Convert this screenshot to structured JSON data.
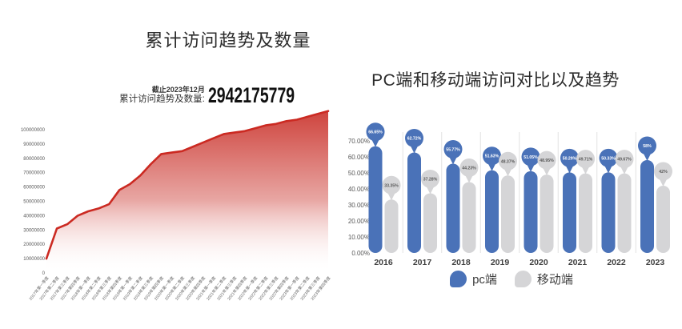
{
  "left_chart": {
    "title": "累计访问趋势及数量",
    "stat": {
      "caption": "截止2023年12月",
      "label": "累计访问趋势及数量:",
      "value": "2942175779"
    }
  },
  "right_chart": {
    "title": "PC端和移动端访问对比以及趋势",
    "legend": {
      "pc": "pc端",
      "mobile": "移动端"
    }
  },
  "chart_data": [
    {
      "type": "area",
      "title": "累计访问趋势及数量",
      "x": [
        "2017年第一季度",
        "2017年第二季度",
        "2017年第三季度",
        "2017年第四季度",
        "2018年第一季度",
        "2018年第二季度",
        "2018年第三季度",
        "2018年第四季度",
        "2019年第一季度",
        "2019年第二季度",
        "2019年第三季度",
        "2019年第四季度",
        "2020年第一季度",
        "2020年第二季度",
        "2020年第三季度",
        "2020年第四季度",
        "2021年第一季度",
        "2021年第二季度",
        "2021年第三季度",
        "2021年第四季度",
        "2022年第一季度",
        "2022年第二季度",
        "2022年第三季度",
        "2022年第四季度",
        "2023年第一季度",
        "2023年第二季度",
        "2023年第三季度",
        "2023年第四季度"
      ],
      "values": [
        10000000,
        31000000,
        34000000,
        40000000,
        43000000,
        45000000,
        48000000,
        58000000,
        62000000,
        68000000,
        76000000,
        83000000,
        84000000,
        85000000,
        88000000,
        91000000,
        94000000,
        97000000,
        98000000,
        99000000,
        101000000,
        103000000,
        104000000,
        106000000,
        107000000,
        109000000,
        111000000,
        113000000
      ],
      "y_ticks": [
        "0",
        "10000000",
        "20000000",
        "30000000",
        "40000000",
        "50000000",
        "60000000",
        "70000000",
        "80000000",
        "90000000",
        "100000000"
      ],
      "ylim": [
        0,
        100000000
      ],
      "line_color": "#cb2a22",
      "fill_top_color": "#cc3a33",
      "fill_bottom_color": "#ffffff",
      "grid": false,
      "legend_position": "none"
    },
    {
      "type": "bar",
      "title": "PC端和移动端访问对比以及趋势",
      "categories": [
        "2016",
        "2017",
        "2018",
        "2019",
        "2020",
        "2021",
        "2022",
        "2023"
      ],
      "series": [
        {
          "name": "pc端",
          "color": "#4a72b8",
          "values": [
            66.65,
            62.72,
            55.77,
            51.63,
            51.05,
            50.29,
            50.33,
            58
          ],
          "labels": [
            "66.65%",
            "62.72%",
            "55.77%",
            "51.63%",
            "51.05%",
            "50.29%",
            "50.33%",
            "58%"
          ]
        },
        {
          "name": "移动端",
          "color": "#d5d5d7",
          "values": [
            33.35,
            37.28,
            44.23,
            48.37,
            48.95,
            49.71,
            49.67,
            42
          ],
          "labels": [
            "33.35%",
            "37.28%",
            "44.23%",
            "48.37%",
            "48.95%",
            "49.71%",
            "49.67%",
            "42%"
          ]
        }
      ],
      "y_ticks": [
        "0.00%",
        "10.00%",
        "20.00%",
        "30.00%",
        "40.00%",
        "50.00%",
        "60.00%",
        "70.00%"
      ],
      "ylim": [
        0,
        70
      ],
      "grid": false,
      "legend_position": "bottom",
      "separator_color": "#e2e2e2",
      "bubble_text_colors": [
        "#ffffff",
        "#5a5a5a"
      ]
    }
  ]
}
